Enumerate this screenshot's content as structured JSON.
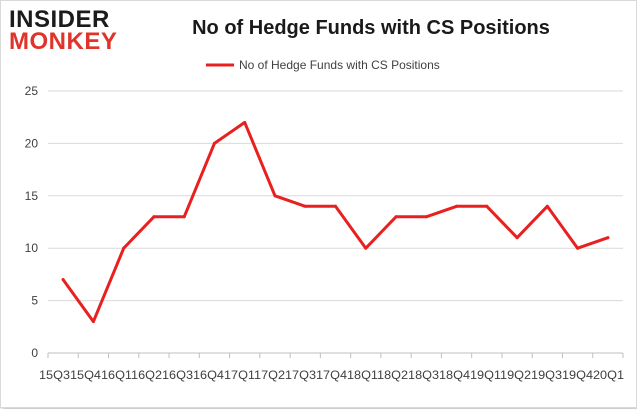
{
  "logo": {
    "line1": "INSIDER",
    "line2": "MONKEY"
  },
  "colors": {
    "series": "#e8201f",
    "grid": "#d9d9d9",
    "axis": "#bfbfbf"
  },
  "chart_data": {
    "type": "line",
    "title": "No of Hedge Funds with CS Positions",
    "xlabel": "",
    "ylabel": "",
    "ylim": [
      0,
      25
    ],
    "yticks": [
      0,
      5,
      10,
      15,
      20,
      25
    ],
    "grid": true,
    "legend_position": "top-center",
    "x_tick_text": "15Q315Q416Q116Q216Q316Q417Q117Q217Q317Q418Q118Q218Q318Q419Q119Q219Q319Q420Q1",
    "categories": [
      "15Q3",
      "15Q4",
      "16Q1",
      "16Q2",
      "16Q3",
      "16Q4",
      "17Q1",
      "17Q2",
      "17Q3",
      "17Q4",
      "18Q1",
      "18Q2",
      "18Q3",
      "18Q4",
      "19Q1",
      "19Q2",
      "19Q3",
      "19Q4",
      "20Q1"
    ],
    "series": [
      {
        "name": "No of Hedge Funds with CS Positions",
        "values": [
          7,
          3,
          10,
          13,
          13,
          20,
          22,
          15,
          14,
          14,
          10,
          13,
          13,
          14,
          14,
          11,
          14,
          10,
          11
        ]
      }
    ]
  }
}
